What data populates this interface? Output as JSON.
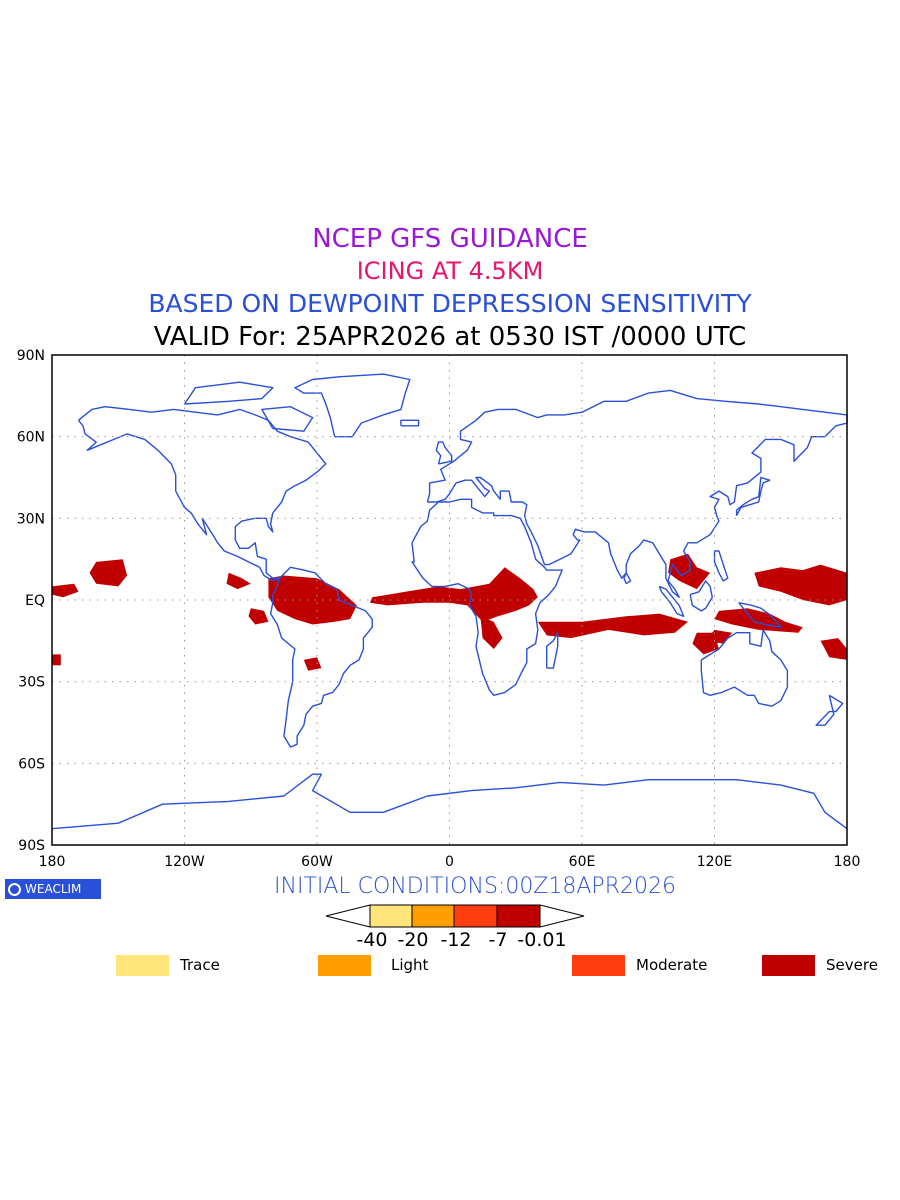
{
  "titles": {
    "line1": "NCEP GFS GUIDANCE",
    "line2": "ICING AT 4.5KM",
    "line3": "BASED ON DEWPOINT DEPRESSION SENSITIVITY",
    "line4": "VALID For: 25APR2026 at 0530 IST /0000 UTC"
  },
  "colors": {
    "title1": "#9a16d8",
    "title2": "#e8146e",
    "title3": "#2a4fd8",
    "coastline": "#2a4fd8",
    "trace": "#ffe57a",
    "light": "#ff9e00",
    "moderate": "#ff3d0f",
    "severe": "#c00000"
  },
  "map": {
    "lat_labels": [
      "90N",
      "60N",
      "30N",
      "EQ",
      "30S",
      "60S",
      "90S"
    ],
    "lon_labels": [
      "180",
      "120W",
      "60W",
      "0",
      "60E",
      "120E",
      "180"
    ]
  },
  "init_conditions": "INITIAL CONDITIONS:00Z18APR2026",
  "logo_text": "WEACLIM",
  "colorbar": {
    "ticks": [
      "-40",
      "-20",
      "-12",
      "-7",
      "-0.01"
    ]
  },
  "legend": [
    {
      "label": "Trace",
      "color": "#ffe57a"
    },
    {
      "label": "Light",
      "color": "#ff9e00"
    },
    {
      "label": "Moderate",
      "color": "#ff3d0f"
    },
    {
      "label": "Severe",
      "color": "#c00000"
    }
  ]
}
